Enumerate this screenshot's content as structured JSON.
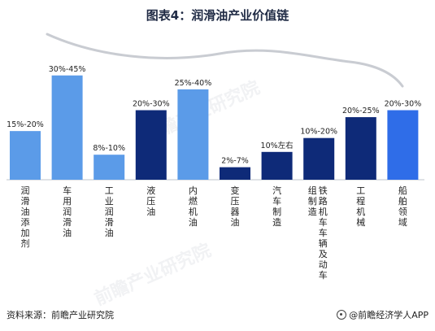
{
  "title": "图表4：润滑油产业价值链",
  "chart_data": {
    "type": "bar",
    "title": "图表4：润滑油产业价值链",
    "categories": [
      "润滑油添加剂",
      "车用润滑油",
      "工业润滑油",
      "液压油",
      "内燃机油",
      "变压器油",
      "汽车制造",
      "铁路机车车辆及动车组制造",
      "工程机械",
      "船舶领域"
    ],
    "value_labels": [
      "15%-20%",
      "30%-45%",
      "8%-10%",
      "20%-30%",
      "25%-40%",
      "2%-7%",
      "10%左右",
      "10%-20%",
      "20%-25%",
      "20%-30%"
    ],
    "values": [
      0.175,
      0.375,
      0.09,
      0.25,
      0.325,
      0.045,
      0.1,
      0.15,
      0.225,
      0.25
    ],
    "colors": [
      "#5b9be8",
      "#5b9be8",
      "#5b9be8",
      "#0e2a78",
      "#5b9be8",
      "#0e2a78",
      "#0e2a78",
      "#0e2a78",
      "#0e2a78",
      "#2f6de8"
    ],
    "ylim": [
      0,
      0.5
    ],
    "grid": false,
    "trend_curve": true
  },
  "footer": {
    "source": "资料来源：前瞻产业研究院",
    "brand": "@前瞻经济学人APP"
  },
  "watermark": "前瞻产业研究院"
}
